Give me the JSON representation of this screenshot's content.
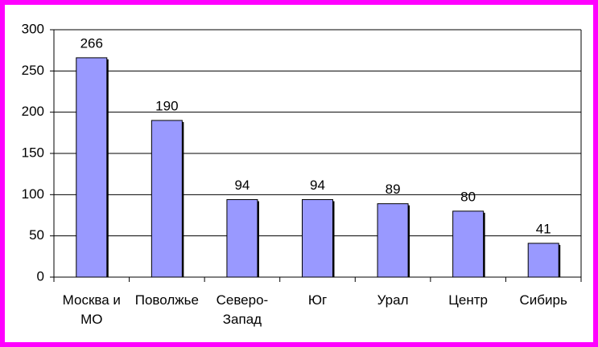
{
  "chart_data": {
    "type": "bar",
    "categories": [
      "Москва и МО",
      "Поволжье",
      "Северо-Запад",
      "Юг",
      "Урал",
      "Центр",
      "Сибирь"
    ],
    "values": [
      266,
      190,
      94,
      94,
      89,
      80,
      41
    ],
    "color": "#9999ff",
    "ylim": [
      0,
      300
    ],
    "yticks": [
      0,
      50,
      100,
      150,
      200,
      250,
      300
    ],
    "grid": true
  }
}
